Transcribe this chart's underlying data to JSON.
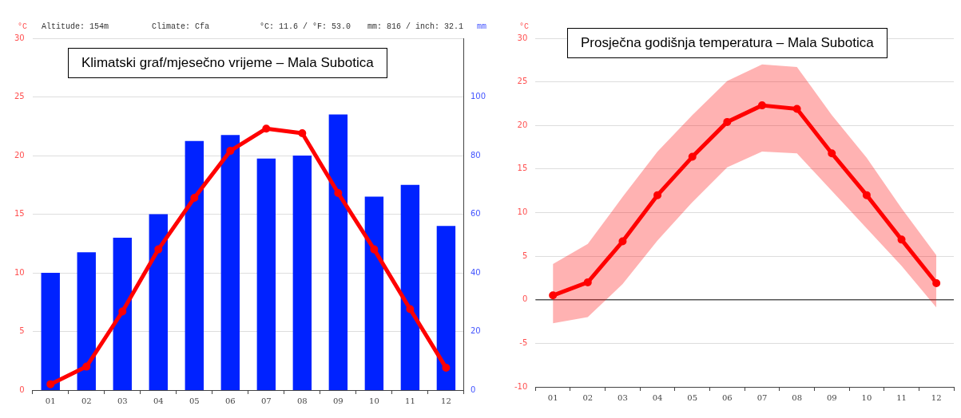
{
  "chart_data": [
    {
      "type": "bar",
      "title": "Klimatski graf/mjesečno vrijeme – Mala Subotica",
      "ylabel": "°C",
      "y2label": "mm",
      "annotations": [
        "Altitude: 154m",
        "Climate: Cfa",
        "°C: 11.6 / °F: 53.0",
        "mm: 816 / inch: 32.1"
      ],
      "categories": [
        "01",
        "02",
        "03",
        "04",
        "05",
        "06",
        "07",
        "08",
        "09",
        "10",
        "11",
        "12"
      ],
      "series": [
        {
          "axis": "y2",
          "color": "#0022ff",
          "values": [
            40,
            47,
            52,
            60,
            85,
            87,
            79,
            80,
            94,
            66,
            70,
            56
          ]
        },
        {
          "type": "line",
          "color": "#ff0000",
          "marker": "circle",
          "values": [
            0.5,
            2.0,
            6.7,
            12.0,
            16.4,
            20.4,
            22.3,
            21.9,
            16.8,
            12.0,
            6.9,
            1.9
          ]
        }
      ],
      "ylim": [
        0,
        30
      ],
      "yticks": [
        0,
        5,
        10,
        15,
        20,
        25,
        30
      ],
      "y2lim": [
        0,
        120
      ],
      "y2ticks": [
        0,
        20,
        40,
        60,
        80,
        100
      ],
      "grid": "y",
      "legend": false
    },
    {
      "type": "line",
      "title": "Prosječna godišnja temperatura – Mala Subotica",
      "ylabel": "°C",
      "categories": [
        "01",
        "02",
        "03",
        "04",
        "05",
        "06",
        "07",
        "08",
        "09",
        "10",
        "11",
        "12"
      ],
      "series": [
        {
          "color": "#ff0000",
          "marker": "circle",
          "values": [
            0.5,
            2.0,
            6.7,
            12.0,
            16.4,
            20.4,
            22.3,
            21.9,
            16.8,
            12.0,
            6.9,
            1.9
          ],
          "lower": [
            -2.7,
            -2.0,
            1.8,
            6.8,
            11.2,
            15.2,
            17.0,
            16.8,
            12.5,
            8.2,
            3.9,
            -0.9
          ],
          "upper": [
            4.1,
            6.4,
            11.8,
            17.0,
            21.2,
            25.1,
            27.0,
            26.7,
            21.2,
            16.3,
            10.5,
            5.1
          ]
        }
      ],
      "ylim": [
        -10,
        30
      ],
      "yticks": [
        -10,
        -5,
        0,
        5,
        10,
        15,
        20,
        25,
        30
      ],
      "ref_lines": [
        {
          "axis": "y",
          "value": 0,
          "color": "#555555"
        }
      ],
      "grid": "y",
      "legend": false
    }
  ]
}
